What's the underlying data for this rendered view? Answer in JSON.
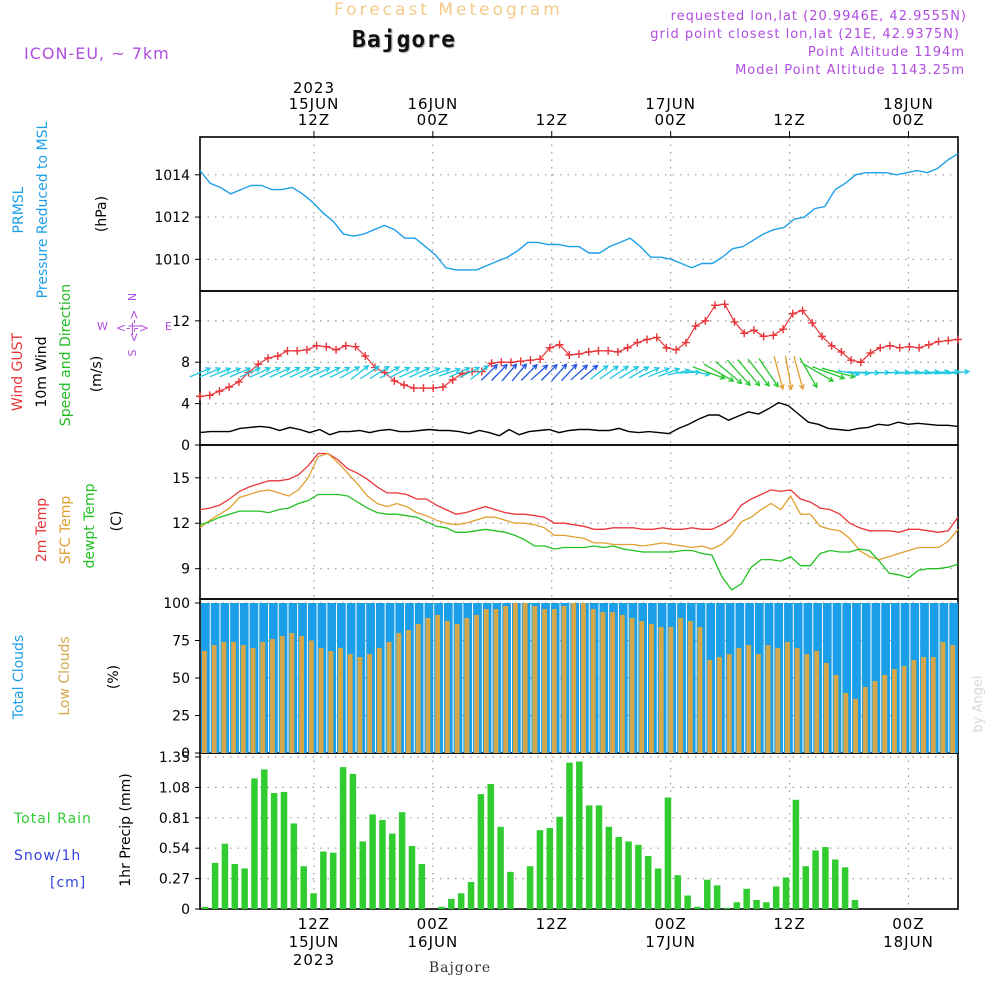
{
  "header": {
    "chart_title": "Forecast Meteogram",
    "location": "Bajgore",
    "model": "ICON-EU, ~ 7km",
    "requested": "requested lon,lat (20.9946E, 42.9555N)",
    "grid_point": "grid point closest lon,lat (21E, 42.9375N)",
    "point_altitude": "Point Altitude 1194m",
    "model_altitude": "Model Point Altitude 1143.25m",
    "bottom_location": "Bajgore",
    "watermark": "by Angel"
  },
  "time_axis": {
    "top_labels": [
      {
        "line1": "2023",
        "line2": "15JUN",
        "line3": "12Z",
        "hour": 12
      },
      {
        "line1": "",
        "line2": "16JUN",
        "line3": "00Z",
        "hour": 24
      },
      {
        "line1": "",
        "line2": "",
        "line3": "12Z",
        "hour": 36
      },
      {
        "line1": "",
        "line2": "17JUN",
        "line3": "00Z",
        "hour": 48
      },
      {
        "line1": "",
        "line2": "",
        "line3": "12Z",
        "hour": 60
      },
      {
        "line1": "",
        "line2": "18JUN",
        "line3": "00Z",
        "hour": 72
      }
    ],
    "bottom_labels": [
      {
        "line1": "12Z",
        "line2": "15JUN",
        "line3": "2023",
        "hour": 12
      },
      {
        "line1": "00Z",
        "line2": "16JUN",
        "line3": "",
        "hour": 24
      },
      {
        "line1": "12Z",
        "line2": "",
        "line3": "",
        "hour": 36
      },
      {
        "line1": "00Z",
        "line2": "17JUN",
        "line3": "",
        "hour": 48
      },
      {
        "line1": "12Z",
        "line2": "",
        "line3": "",
        "hour": 60
      },
      {
        "line1": "00Z",
        "line2": "18JUN",
        "line3": "",
        "hour": 72
      }
    ],
    "start_hour": 0.5,
    "end_hour": 77
  },
  "colors": {
    "pressure": "#1f9fe8",
    "gust": "#e8353a",
    "wind": "#000000",
    "t2m": "#e8353a",
    "sfc": "#e0a030",
    "dew": "#22c020",
    "total_cloud": "#1a9fe8",
    "low_cloud": "#d4a84a",
    "rain": "#30cc30",
    "snow": "#3344dd",
    "label_green": "#22bb22",
    "compass": "#b04de0"
  },
  "chart_data": [
    {
      "type": "line",
      "panel": "pressure",
      "label_lines": [
        "PRMSL",
        "Pressure Reduced to MSL"
      ],
      "unit": "(hPa)",
      "ylim": [
        1008.5,
        1015.6
      ],
      "yticks": [
        1010,
        1012,
        1014
      ],
      "series": [
        {
          "name": "PRMSL",
          "values": [
            1014.2,
            1013.6,
            1013.4,
            1013.1,
            1013.3,
            1013.5,
            1013.5,
            1013.3,
            1013.3,
            1013.4,
            1013.1,
            1012.7,
            1012.2,
            1011.8,
            1011.2,
            1011.1,
            1011.2,
            1011.4,
            1011.6,
            1011.4,
            1011.0,
            1011.0,
            1010.6,
            1010.2,
            1009.6,
            1009.5,
            1009.5,
            1009.5,
            1009.7,
            1009.9,
            1010.1,
            1010.4,
            1010.8,
            1010.8,
            1010.7,
            1010.7,
            1010.6,
            1010.6,
            1010.3,
            1010.3,
            1010.6,
            1010.8,
            1011.0,
            1010.6,
            1010.1,
            1010.1,
            1010.0,
            1009.8,
            1009.6,
            1009.8,
            1009.8,
            1010.1,
            1010.5,
            1010.6,
            1010.9,
            1011.2,
            1011.4,
            1011.5,
            1011.9,
            1012.0,
            1012.4,
            1012.5,
            1013.3,
            1013.6,
            1014.0,
            1014.1,
            1014.1,
            1014.1,
            1014.0,
            1014.1,
            1014.2,
            1014.1,
            1014.3,
            1014.7,
            1015.0
          ]
        }
      ]
    },
    {
      "type": "line",
      "panel": "wind",
      "label_lines": [
        "Wind GUST",
        "10m Wind",
        "Speed and Direction"
      ],
      "unit": "(m/s)",
      "compass": {
        "n": "N",
        "s": "S",
        "w": "W",
        "e": "E"
      },
      "ylim": [
        0,
        14.5
      ],
      "yticks": [
        0,
        4,
        8,
        12
      ],
      "series": [
        {
          "name": "Wind GUST",
          "values": [
            4.7,
            4.8,
            5.2,
            5.6,
            6.1,
            7.0,
            7.8,
            8.4,
            8.6,
            9.1,
            9.1,
            9.2,
            9.6,
            9.5,
            9.2,
            9.6,
            9.5,
            8.6,
            7.5,
            7.0,
            6.2,
            5.8,
            5.5,
            5.5,
            5.5,
            5.6,
            6.3,
            6.9,
            7.1,
            7.1,
            7.9,
            8.0,
            8.0,
            8.1,
            8.2,
            8.3,
            9.4,
            9.7,
            8.7,
            8.8,
            9.0,
            9.1,
            9.1,
            9.0,
            9.4,
            9.9,
            10.2,
            10.4,
            9.4,
            9.2,
            9.9,
            11.5,
            12.0,
            13.5,
            13.6,
            11.9,
            10.8,
            11.1,
            10.5,
            10.6,
            11.2,
            12.7,
            13.0,
            11.8,
            10.5,
            9.6,
            9.0,
            8.2,
            8.0,
            8.9,
            9.4,
            9.6,
            9.4,
            9.5,
            9.4,
            9.7,
            10.0,
            10.1,
            10.2
          ]
        },
        {
          "name": "10m Wind",
          "values": [
            1.2,
            1.3,
            1.3,
            1.3,
            1.6,
            1.7,
            1.8,
            1.7,
            1.4,
            1.7,
            1.5,
            1.2,
            1.5,
            1.0,
            1.3,
            1.3,
            1.4,
            1.2,
            1.4,
            1.5,
            1.3,
            1.3,
            1.4,
            1.5,
            1.4,
            1.4,
            1.3,
            1.1,
            1.4,
            1.2,
            0.9,
            1.5,
            1.0,
            1.3,
            1.4,
            1.5,
            1.2,
            1.4,
            1.5,
            1.5,
            1.4,
            1.4,
            1.6,
            1.3,
            1.2,
            1.3,
            1.2,
            1.1,
            1.6,
            2.0,
            2.5,
            2.9,
            2.9,
            2.4,
            2.8,
            3.2,
            3.0,
            3.5,
            4.1,
            3.8,
            3.0,
            2.2,
            2.0,
            1.6,
            1.5,
            1.4,
            1.6,
            1.7,
            2.0,
            1.9,
            2.2,
            2.0,
            2.1,
            2.0,
            1.9,
            1.9,
            1.8
          ]
        },
        {
          "name": "wind_dir_deg",
          "values": [
            247,
            247,
            248,
            248,
            247,
            246,
            245,
            245,
            245,
            244,
            244,
            243,
            245,
            244,
            243,
            240,
            232,
            236,
            238,
            240,
            243,
            245,
            245,
            247,
            250,
            251,
            246,
            243,
            232,
            226,
            224,
            221,
            220,
            225,
            228,
            225,
            222,
            223,
            228,
            230,
            232,
            235,
            236,
            238,
            240,
            245,
            248,
            250,
            258,
            268,
            280,
            290,
            300,
            310,
            318,
            320,
            322,
            326,
            345,
            350,
            345,
            330,
            300,
            290,
            285,
            280,
            275,
            272,
            270,
            268,
            268,
            266,
            266,
            265,
            264,
            264,
            264
          ]
        }
      ]
    },
    {
      "type": "line",
      "panel": "temperature",
      "label_lines": [
        "2m Temp",
        "SFC Temp",
        "dewpt Temp"
      ],
      "unit": "(C)",
      "ylim": [
        7,
        16.9
      ],
      "yticks": [
        9,
        12,
        15
      ],
      "series": [
        {
          "name": "2m Temp",
          "values": [
            12.9,
            13.0,
            13.2,
            13.6,
            14.1,
            14.4,
            14.6,
            14.8,
            14.8,
            14.9,
            15.2,
            15.8,
            16.6,
            16.6,
            16.2,
            15.6,
            15.3,
            14.9,
            14.4,
            14.0,
            14.0,
            13.9,
            13.6,
            13.6,
            13.2,
            12.9,
            12.6,
            12.7,
            12.9,
            13.1,
            12.9,
            12.7,
            12.6,
            12.6,
            12.5,
            12.4,
            12.0,
            12.0,
            11.9,
            11.8,
            11.6,
            11.6,
            11.7,
            11.7,
            11.7,
            11.6,
            11.6,
            11.7,
            11.6,
            11.6,
            11.7,
            11.6,
            11.6,
            11.9,
            12.3,
            13.2,
            13.6,
            13.9,
            14.2,
            14.1,
            14.2,
            13.6,
            13.4,
            13.0,
            12.9,
            12.6,
            12.0,
            11.7,
            11.5,
            11.5,
            11.5,
            11.4,
            11.6,
            11.6,
            11.5,
            11.4,
            11.5,
            12.4
          ]
        },
        {
          "name": "SFC Temp",
          "values": [
            11.7,
            12.2,
            12.6,
            13.0,
            13.7,
            13.9,
            14.1,
            14.2,
            14.0,
            13.8,
            14.2,
            15.0,
            16.4,
            16.6,
            16.0,
            15.3,
            14.6,
            13.8,
            13.3,
            13.1,
            13.3,
            13.1,
            12.7,
            12.5,
            12.2,
            12.0,
            11.9,
            12.0,
            12.2,
            12.4,
            12.4,
            12.2,
            12.0,
            12.0,
            11.9,
            11.7,
            11.2,
            11.2,
            11.1,
            11.0,
            10.7,
            10.7,
            10.6,
            10.6,
            10.6,
            10.5,
            10.6,
            10.7,
            10.6,
            10.5,
            10.4,
            10.5,
            10.3,
            10.6,
            11.2,
            12.1,
            12.4,
            12.9,
            13.3,
            12.9,
            13.8,
            12.6,
            12.6,
            11.8,
            11.6,
            11.5,
            11.0,
            10.2,
            9.8,
            9.6,
            9.8,
            10.0,
            10.2,
            10.4,
            10.4,
            10.4,
            10.8,
            11.6
          ]
        },
        {
          "name": "dewpt Temp",
          "values": [
            11.9,
            12.1,
            12.4,
            12.6,
            12.8,
            12.8,
            12.8,
            12.7,
            12.9,
            13.0,
            13.3,
            13.5,
            13.9,
            13.9,
            13.9,
            13.8,
            13.4,
            13.0,
            12.7,
            12.6,
            12.6,
            12.5,
            12.4,
            12.1,
            11.8,
            11.7,
            11.4,
            11.4,
            11.5,
            11.6,
            11.5,
            11.4,
            11.2,
            10.9,
            10.5,
            10.5,
            10.3,
            10.4,
            10.4,
            10.4,
            10.5,
            10.4,
            10.5,
            10.3,
            10.2,
            10.1,
            10.1,
            10.1,
            10.1,
            10.2,
            10.2,
            10.0,
            9.9,
            8.5,
            7.6,
            8.0,
            9.1,
            9.6,
            9.6,
            9.5,
            9.8,
            9.2,
            9.2,
            10.0,
            10.2,
            10.1,
            10.1,
            10.3,
            10.2,
            9.5,
            8.7,
            8.6,
            8.4,
            8.9,
            9.0,
            9.0,
            9.1,
            9.3
          ]
        }
      ]
    },
    {
      "type": "bar",
      "panel": "clouds",
      "label_lines": [
        "Total Clouds",
        "Low Clouds"
      ],
      "unit": "(%)",
      "ylim": [
        0,
        100
      ],
      "yticks": [
        0,
        25,
        50,
        75,
        100
      ],
      "series": [
        {
          "name": "Total Clouds",
          "values": [
            100,
            100,
            100,
            100,
            100,
            100,
            100,
            100,
            100,
            100,
            100,
            100,
            100,
            100,
            100,
            100,
            100,
            100,
            100,
            100,
            100,
            100,
            100,
            100,
            100,
            100,
            100,
            100,
            100,
            100,
            100,
            100,
            100,
            100,
            100,
            100,
            100,
            100,
            100,
            100,
            100,
            100,
            100,
            100,
            100,
            100,
            100,
            100,
            100,
            100,
            100,
            100,
            100,
            100,
            100,
            100,
            100,
            100,
            100,
            100,
            100,
            100,
            100,
            100,
            100,
            100,
            100,
            100,
            100,
            100,
            100,
            100,
            100,
            100,
            100,
            100,
            100,
            100
          ]
        },
        {
          "name": "Low Clouds",
          "values": [
            68,
            72,
            74,
            74,
            72,
            70,
            74,
            76,
            78,
            80,
            78,
            75,
            70,
            68,
            70,
            66,
            64,
            66,
            70,
            74,
            80,
            82,
            86,
            90,
            92,
            88,
            86,
            90,
            92,
            96,
            96,
            98,
            100,
            100,
            98,
            96,
            96,
            98,
            100,
            100,
            96,
            94,
            94,
            92,
            90,
            88,
            86,
            84,
            84,
            90,
            88,
            84,
            62,
            64,
            66,
            70,
            72,
            66,
            72,
            70,
            74,
            70,
            66,
            68,
            60,
            52,
            40,
            36,
            44,
            48,
            52,
            56,
            58,
            62,
            64,
            64,
            74,
            72
          ]
        }
      ]
    },
    {
      "type": "bar",
      "panel": "precip",
      "label_lines": [
        "Total  Rain",
        "Snow/1h",
        "[cm]"
      ],
      "unit": "1hr Precip (mm)",
      "ylim": [
        0,
        1.35
      ],
      "yticks": [
        0,
        0.27,
        0.54,
        0.81,
        1.08,
        1.35
      ],
      "series": [
        {
          "name": "Total Rain",
          "values": [
            0.02,
            0.41,
            0.58,
            0.4,
            0.36,
            1.16,
            1.24,
            1.03,
            1.04,
            0.76,
            0.38,
            0.14,
            0.51,
            0.5,
            1.26,
            1.2,
            0.6,
            0.84,
            0.79,
            0.67,
            0.86,
            0.56,
            0.4,
            0.0,
            0.02,
            0.09,
            0.14,
            0.24,
            1.02,
            1.11,
            0.73,
            0.33,
            0.0,
            0.38,
            0.7,
            0.72,
            0.82,
            1.3,
            1.31,
            0.92,
            0.92,
            0.73,
            0.64,
            0.6,
            0.57,
            0.47,
            0.36,
            0.99,
            0.3,
            0.12,
            0.02,
            0.26,
            0.21,
            0.01,
            0.06,
            0.18,
            0.08,
            0.06,
            0.2,
            0.28,
            0.97,
            0.38,
            0.52,
            0.55,
            0.44,
            0.37,
            0.08,
            0,
            0,
            0,
            0,
            0,
            0,
            0,
            0,
            0,
            0
          ]
        },
        {
          "name": "Snow/1h",
          "values": [
            0,
            0,
            0,
            0,
            0,
            0,
            0,
            0,
            0,
            0,
            0,
            0,
            0,
            0,
            0,
            0,
            0,
            0,
            0,
            0,
            0,
            0,
            0,
            0,
            0,
            0,
            0,
            0,
            0,
            0,
            0,
            0,
            0,
            0,
            0,
            0,
            0,
            0,
            0,
            0,
            0,
            0,
            0,
            0,
            0,
            0,
            0,
            0,
            0,
            0,
            0,
            0,
            0,
            0,
            0,
            0,
            0,
            0,
            0,
            0,
            0,
            0,
            0,
            0,
            0,
            0,
            0,
            0,
            0,
            0,
            0,
            0,
            0,
            0,
            0,
            0,
            0
          ]
        }
      ]
    }
  ]
}
